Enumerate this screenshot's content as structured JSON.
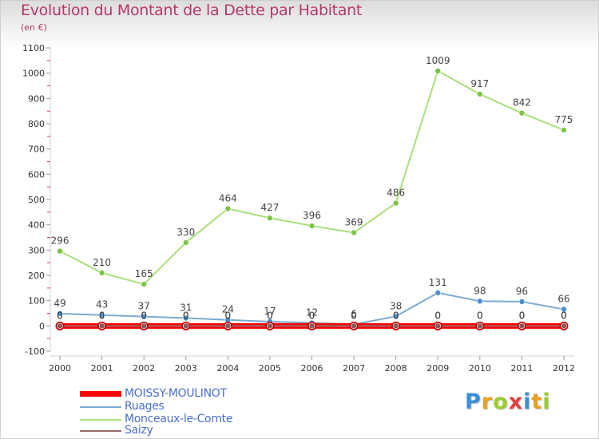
{
  "header": {
    "title": "Evolution du Montant de la Dette par Habitant",
    "subtitle": "(en €)"
  },
  "logo": {
    "letters": [
      "P",
      "r",
      "o",
      "x",
      "i",
      "t",
      "i"
    ],
    "colors": [
      "#3a8fd8",
      "#e8a020",
      "#9acd32",
      "#e04040",
      "#3a8fd8",
      "#e8a020",
      "#9acd32"
    ]
  },
  "chart_data": {
    "type": "line",
    "title": "Evolution du Montant de la Dette par Habitant",
    "subtitle": "(en €)",
    "x": [
      "2000",
      "2001",
      "2002",
      "2003",
      "2004",
      "2005",
      "2006",
      "2007",
      "2008",
      "2009",
      "2010",
      "2011",
      "2012"
    ],
    "ylim": [
      -100,
      1100
    ],
    "yticks": [
      -100,
      0,
      100,
      200,
      300,
      400,
      500,
      600,
      700,
      800,
      900,
      1000,
      1100
    ],
    "grid": false,
    "legend_position": "bottom-left",
    "series": [
      {
        "name": "MOISSY-MOULINOT",
        "color": "#ff0000",
        "marker_color": "#c00000",
        "line_width": 7,
        "marker_radius": 5.5,
        "values": [
          0,
          0,
          0,
          0,
          0,
          0,
          0,
          0,
          0,
          0,
          0,
          0,
          0
        ],
        "labels": [
          "0",
          "0",
          "0",
          "0",
          "0",
          "0",
          "0",
          "0",
          "0",
          "0",
          "0",
          "0",
          "0"
        ]
      },
      {
        "name": "Ruages",
        "color": "#7aaad2",
        "marker_color": "#4a90d0",
        "line_width": 2,
        "marker_radius": 3.5,
        "values": [
          49,
          43,
          37,
          31,
          24,
          17,
          12,
          6,
          38,
          131,
          98,
          96,
          66
        ],
        "labels": [
          "49",
          "43",
          "37",
          "31",
          "24",
          "17",
          "12",
          "6",
          "38",
          "131",
          "98",
          "96",
          "66"
        ]
      },
      {
        "name": "Monceaux-le-Comte",
        "color": "#a8e07a",
        "marker_color": "#7cc444",
        "line_width": 2,
        "marker_radius": 3.5,
        "values": [
          296,
          210,
          165,
          330,
          464,
          427,
          396,
          369,
          486,
          1009,
          917,
          842,
          775
        ],
        "labels": [
          "296",
          "210",
          "165",
          "330",
          "464",
          "427",
          "396",
          "369",
          "486",
          "1009",
          "917",
          "842",
          "775"
        ]
      },
      {
        "name": "Saizy",
        "color": "#9a6a6a",
        "marker_color": "#8a5a5a",
        "line_width": 2,
        "marker_radius": 3.5,
        "values": [
          0,
          0,
          0,
          0,
          0,
          0,
          0,
          0,
          0,
          0,
          0,
          0,
          0
        ],
        "labels": [
          "0",
          "0",
          "0",
          "0",
          "0",
          "0",
          "0",
          "0",
          "0",
          "0",
          "0",
          "0",
          "0"
        ]
      }
    ]
  }
}
